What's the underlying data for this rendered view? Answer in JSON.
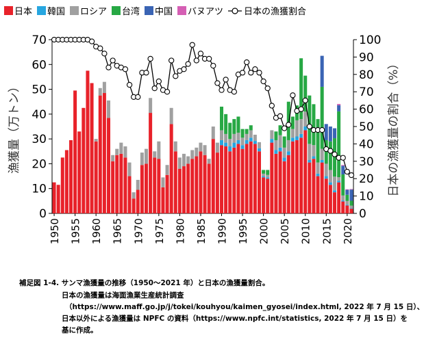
{
  "chart_data": {
    "type": "bar",
    "stacked": true,
    "legend": [
      {
        "name": "日本",
        "color": "#e8222a",
        "kind": "bar"
      },
      {
        "name": "韓国",
        "color": "#27a6e0",
        "kind": "bar"
      },
      {
        "name": "ロシア",
        "color": "#a0a0a0",
        "kind": "bar"
      },
      {
        "name": "台湾",
        "color": "#27a844",
        "kind": "bar"
      },
      {
        "name": "中国",
        "color": "#3a64b4",
        "kind": "bar"
      },
      {
        "name": "バヌアツ",
        "color": "#d55fb4",
        "kind": "bar"
      },
      {
        "name": "日本の漁獲割合",
        "color": "#000000",
        "kind": "line"
      }
    ],
    "ylabel_left": "漁獲量（万トン）",
    "ylabel_right": "日本の漁獲量の割合（%）",
    "y_left_range": [
      0,
      70
    ],
    "y_right_range": [
      0,
      100
    ],
    "y_left_ticks": [
      "0",
      "10",
      "20",
      "30",
      "40",
      "50",
      "60",
      "70"
    ],
    "y_right_ticks": [
      "0",
      "10",
      "20",
      "30",
      "40",
      "50",
      "60",
      "70",
      "80",
      "90",
      "100"
    ],
    "x_ticks": [
      "1950",
      "1955",
      "1960",
      "1965",
      "1970",
      "1975",
      "1980",
      "1985",
      "1990",
      "1995",
      "2000",
      "2005",
      "2010",
      "2015",
      "2020"
    ],
    "years": [
      1950,
      1951,
      1952,
      1953,
      1954,
      1955,
      1956,
      1957,
      1958,
      1959,
      1960,
      1961,
      1962,
      1963,
      1964,
      1965,
      1966,
      1967,
      1968,
      1969,
      1970,
      1971,
      1972,
      1973,
      1974,
      1975,
      1976,
      1977,
      1978,
      1979,
      1980,
      1981,
      1982,
      1983,
      1984,
      1985,
      1986,
      1987,
      1988,
      1989,
      1990,
      1991,
      1992,
      1993,
      1994,
      1995,
      1996,
      1997,
      1998,
      1999,
      2000,
      2001,
      2002,
      2003,
      2004,
      2005,
      2006,
      2007,
      2008,
      2009,
      2010,
      2011,
      2012,
      2013,
      2014,
      2015,
      2016,
      2017,
      2018,
      2019,
      2020,
      2021
    ],
    "series": [
      {
        "name": "日本",
        "values": [
          12.5,
          11.5,
          22.5,
          25.5,
          29.5,
          49.5,
          33.0,
          42.5,
          57.5,
          52.5,
          29.0,
          47.5,
          48.5,
          38.5,
          21.0,
          23.5,
          24.0,
          22.5,
          15.0,
          6.0,
          9.5,
          19.5,
          20.0,
          40.5,
          22.5,
          22.0,
          10.5,
          15.5,
          36.0,
          25.0,
          18.0,
          19.0,
          20.0,
          22.0,
          23.0,
          25.0,
          23.5,
          20.0,
          30.0,
          24.5,
          27.5,
          27.0,
          25.0,
          26.5,
          28.0,
          26.0,
          28.0,
          29.0,
          28.0,
          25.0,
          14.5,
          14.0,
          28.5,
          24.0,
          25.0,
          21.0,
          23.5,
          29.0,
          29.5,
          30.5,
          33.5,
          20.5,
          22.0,
          15.0,
          20.5,
          14.0,
          11.5,
          8.5,
          12.5,
          4.8,
          3.2,
          1.9
        ]
      },
      {
        "name": "韓国",
        "values": [
          0,
          0,
          0,
          0,
          0,
          0,
          0,
          0,
          0,
          0,
          0,
          0,
          0,
          0,
          0,
          0,
          0,
          0,
          0,
          0,
          0,
          0,
          0,
          0,
          0,
          0,
          0,
          0,
          0,
          0,
          0,
          0,
          0,
          0,
          0,
          0,
          0,
          0,
          0,
          0,
          2.0,
          1.5,
          2.0,
          2.0,
          1.5,
          1.5,
          1.5,
          1.5,
          1.2,
          1.2,
          0.5,
          0.5,
          1.5,
          1.5,
          1.5,
          1.5,
          1.5,
          1.5,
          1.5,
          1.5,
          1.5,
          1.0,
          1.0,
          1.0,
          1.0,
          1.0,
          1.0,
          0.8,
          0.6,
          0.4,
          0.3,
          0.2
        ]
      },
      {
        "name": "ロシア",
        "values": [
          0,
          0,
          0,
          0,
          0,
          0,
          0,
          0,
          0,
          0,
          1.0,
          3.0,
          4.5,
          7.0,
          2.5,
          2.5,
          4.5,
          4.5,
          5.5,
          2.5,
          4.0,
          5.0,
          6.0,
          6.0,
          2.5,
          7.0,
          4.0,
          4.0,
          6.5,
          4.0,
          4.5,
          5.0,
          3.0,
          3.5,
          3.5,
          3.5,
          4.0,
          2.0,
          5.0,
          4.0,
          4.0,
          3.5,
          3.0,
          3.5,
          3.0,
          3.0,
          2.5,
          3.0,
          2.5,
          2.5,
          1.0,
          1.0,
          3.5,
          4.0,
          5.0,
          4.0,
          4.5,
          3.5,
          6.5,
          6.0,
          6.0,
          6.5,
          4.5,
          4.5,
          4.5,
          5.0,
          5.0,
          5.5,
          1.5,
          2.0,
          1.5,
          1.0
        ]
      },
      {
        "name": "台湾",
        "values": [
          0,
          0,
          0,
          0,
          0,
          0,
          0,
          0,
          0,
          0,
          0,
          0,
          0,
          0,
          0,
          0,
          0,
          0,
          0,
          0,
          0,
          0,
          0,
          0,
          0,
          0,
          0,
          0,
          0,
          0,
          0,
          0,
          0,
          0,
          0,
          0,
          0,
          0,
          0,
          0,
          9.5,
          8.0,
          6.5,
          6.0,
          6.5,
          3.5,
          2.0,
          2.0,
          0.0,
          0.0,
          1.5,
          2.0,
          0,
          3.5,
          4.0,
          4.5,
          15.5,
          5.0,
          6.0,
          24.5,
          14.5,
          19.5,
          16.5,
          17.5,
          25.0,
          9.5,
          11.5,
          15.5,
          26.5,
          8.5,
          2.5,
          2.0
        ]
      },
      {
        "name": "中国",
        "values": [
          0,
          0,
          0,
          0,
          0,
          0,
          0,
          0,
          0,
          0,
          0,
          0,
          0,
          0,
          0,
          0,
          0,
          0,
          0,
          0,
          0,
          0,
          0,
          0,
          0,
          0,
          0,
          0,
          0,
          0,
          0,
          0,
          0,
          0,
          0,
          0,
          0,
          0,
          0,
          0,
          0,
          0,
          0,
          0,
          0,
          0,
          0,
          0,
          0,
          0,
          0,
          0,
          0,
          0,
          0,
          0,
          0,
          0,
          0,
          0,
          0,
          0,
          0,
          0,
          12.5,
          6.5,
          6.0,
          4.0,
          2.5,
          3.5,
          2.0,
          4.5
        ]
      },
      {
        "name": "バヌアツ",
        "values": [
          0,
          0,
          0,
          0,
          0,
          0,
          0,
          0,
          0,
          0,
          0,
          0,
          0,
          0,
          0,
          0,
          0,
          0,
          0,
          0,
          0,
          0,
          0,
          0,
          0,
          0,
          0,
          0,
          0,
          0,
          0,
          0,
          0,
          0,
          0,
          0,
          0,
          0,
          0,
          0,
          0,
          0,
          0,
          0,
          0,
          0,
          0,
          0,
          0,
          0,
          0,
          0,
          0,
          0,
          0,
          0,
          0,
          0,
          0,
          0,
          0,
          0,
          0,
          0,
          0,
          0,
          0,
          0,
          0.5,
          0.3,
          0.2,
          0.2
        ]
      }
    ],
    "line_series": {
      "name": "日本の漁獲割合",
      "axis": "right",
      "values": [
        100,
        100,
        100,
        100,
        100,
        100,
        100,
        100,
        100,
        99,
        96,
        95,
        92,
        84,
        88,
        85,
        84,
        83,
        74,
        67,
        67,
        81,
        81,
        89,
        72,
        76,
        71,
        70,
        88,
        79,
        82,
        83,
        86,
        97,
        88,
        92,
        89,
        89,
        85,
        75,
        71,
        77,
        71,
        70,
        80,
        81,
        87,
        81,
        83,
        81,
        76,
        72,
        62,
        55,
        56,
        49,
        51,
        68,
        59,
        60,
        65,
        50,
        48,
        48,
        48,
        37,
        36,
        34,
        32,
        32,
        24,
        22
      ]
    }
  },
  "caption": {
    "title": "補足図 1-4.  サンマ漁獲量の推移（1950～2021 年）と日本の漁獲量割合。",
    "line1": "日本の漁獲量は海面漁業生産統計調査",
    "line2": "（https://www.maff.go.jp/j/tokei/kouhyou/kaimen_gyosei/index.html, 2022 年 7 月 15 日）、",
    "line3": "日本以外による漁獲量は NPFC の資料（https://www.npfc.int/statistics, 2022 年 7 月 15 日）を",
    "line4": "基に作成。"
  }
}
